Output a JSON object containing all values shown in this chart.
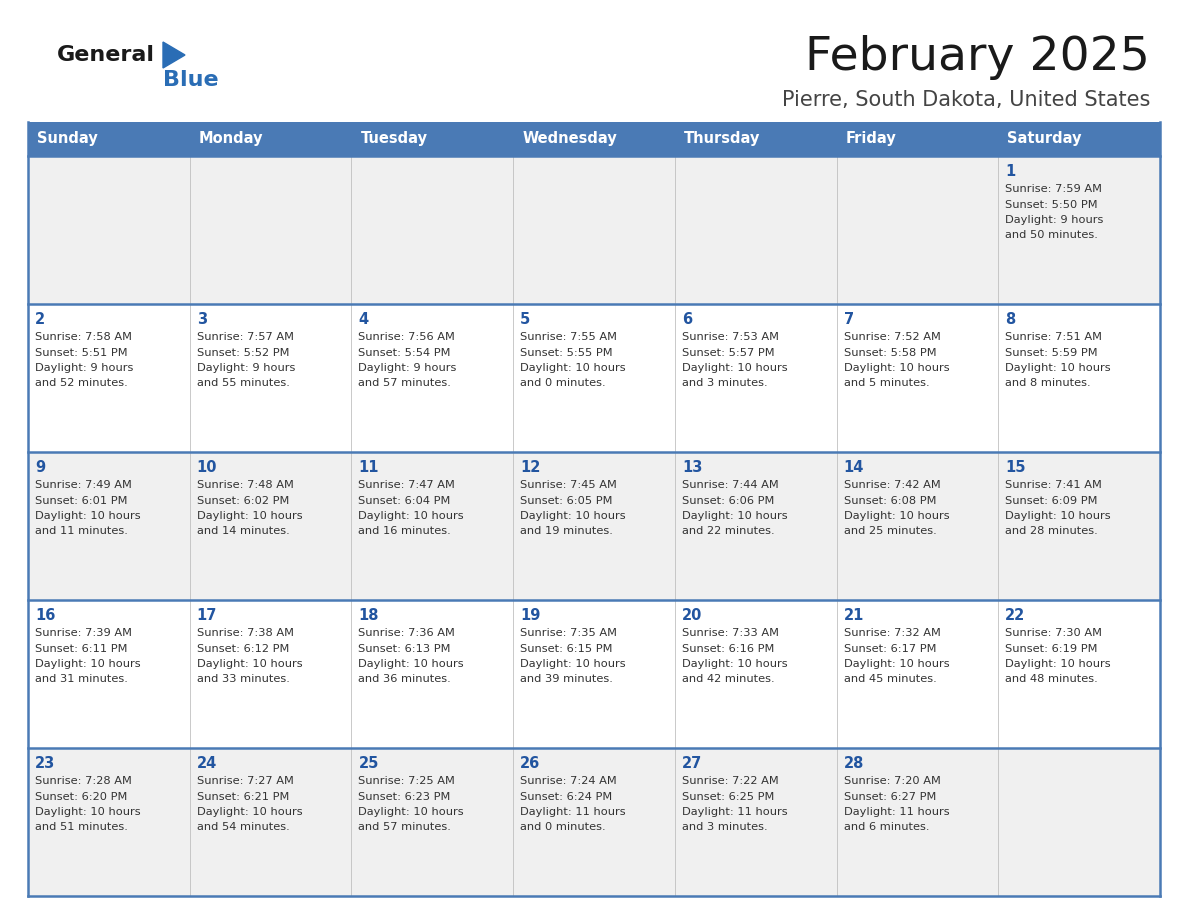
{
  "title": "February 2025",
  "subtitle": "Pierre, South Dakota, United States",
  "header_bg_color": "#4a7ab5",
  "header_text_color": "#ffffff",
  "cell_bg_light": "#f0f0f0",
  "cell_bg_white": "#ffffff",
  "day_number_color": "#2255a0",
  "cell_text_color": "#333333",
  "border_color": "#4a7ab5",
  "days_of_week": [
    "Sunday",
    "Monday",
    "Tuesday",
    "Wednesday",
    "Thursday",
    "Friday",
    "Saturday"
  ],
  "calendar": [
    [
      {
        "day": "",
        "info": ""
      },
      {
        "day": "",
        "info": ""
      },
      {
        "day": "",
        "info": ""
      },
      {
        "day": "",
        "info": ""
      },
      {
        "day": "",
        "info": ""
      },
      {
        "day": "",
        "info": ""
      },
      {
        "day": "1",
        "info": "Sunrise: 7:59 AM\nSunset: 5:50 PM\nDaylight: 9 hours\nand 50 minutes."
      }
    ],
    [
      {
        "day": "2",
        "info": "Sunrise: 7:58 AM\nSunset: 5:51 PM\nDaylight: 9 hours\nand 52 minutes."
      },
      {
        "day": "3",
        "info": "Sunrise: 7:57 AM\nSunset: 5:52 PM\nDaylight: 9 hours\nand 55 minutes."
      },
      {
        "day": "4",
        "info": "Sunrise: 7:56 AM\nSunset: 5:54 PM\nDaylight: 9 hours\nand 57 minutes."
      },
      {
        "day": "5",
        "info": "Sunrise: 7:55 AM\nSunset: 5:55 PM\nDaylight: 10 hours\nand 0 minutes."
      },
      {
        "day": "6",
        "info": "Sunrise: 7:53 AM\nSunset: 5:57 PM\nDaylight: 10 hours\nand 3 minutes."
      },
      {
        "day": "7",
        "info": "Sunrise: 7:52 AM\nSunset: 5:58 PM\nDaylight: 10 hours\nand 5 minutes."
      },
      {
        "day": "8",
        "info": "Sunrise: 7:51 AM\nSunset: 5:59 PM\nDaylight: 10 hours\nand 8 minutes."
      }
    ],
    [
      {
        "day": "9",
        "info": "Sunrise: 7:49 AM\nSunset: 6:01 PM\nDaylight: 10 hours\nand 11 minutes."
      },
      {
        "day": "10",
        "info": "Sunrise: 7:48 AM\nSunset: 6:02 PM\nDaylight: 10 hours\nand 14 minutes."
      },
      {
        "day": "11",
        "info": "Sunrise: 7:47 AM\nSunset: 6:04 PM\nDaylight: 10 hours\nand 16 minutes."
      },
      {
        "day": "12",
        "info": "Sunrise: 7:45 AM\nSunset: 6:05 PM\nDaylight: 10 hours\nand 19 minutes."
      },
      {
        "day": "13",
        "info": "Sunrise: 7:44 AM\nSunset: 6:06 PM\nDaylight: 10 hours\nand 22 minutes."
      },
      {
        "day": "14",
        "info": "Sunrise: 7:42 AM\nSunset: 6:08 PM\nDaylight: 10 hours\nand 25 minutes."
      },
      {
        "day": "15",
        "info": "Sunrise: 7:41 AM\nSunset: 6:09 PM\nDaylight: 10 hours\nand 28 minutes."
      }
    ],
    [
      {
        "day": "16",
        "info": "Sunrise: 7:39 AM\nSunset: 6:11 PM\nDaylight: 10 hours\nand 31 minutes."
      },
      {
        "day": "17",
        "info": "Sunrise: 7:38 AM\nSunset: 6:12 PM\nDaylight: 10 hours\nand 33 minutes."
      },
      {
        "day": "18",
        "info": "Sunrise: 7:36 AM\nSunset: 6:13 PM\nDaylight: 10 hours\nand 36 minutes."
      },
      {
        "day": "19",
        "info": "Sunrise: 7:35 AM\nSunset: 6:15 PM\nDaylight: 10 hours\nand 39 minutes."
      },
      {
        "day": "20",
        "info": "Sunrise: 7:33 AM\nSunset: 6:16 PM\nDaylight: 10 hours\nand 42 minutes."
      },
      {
        "day": "21",
        "info": "Sunrise: 7:32 AM\nSunset: 6:17 PM\nDaylight: 10 hours\nand 45 minutes."
      },
      {
        "day": "22",
        "info": "Sunrise: 7:30 AM\nSunset: 6:19 PM\nDaylight: 10 hours\nand 48 minutes."
      }
    ],
    [
      {
        "day": "23",
        "info": "Sunrise: 7:28 AM\nSunset: 6:20 PM\nDaylight: 10 hours\nand 51 minutes."
      },
      {
        "day": "24",
        "info": "Sunrise: 7:27 AM\nSunset: 6:21 PM\nDaylight: 10 hours\nand 54 minutes."
      },
      {
        "day": "25",
        "info": "Sunrise: 7:25 AM\nSunset: 6:23 PM\nDaylight: 10 hours\nand 57 minutes."
      },
      {
        "day": "26",
        "info": "Sunrise: 7:24 AM\nSunset: 6:24 PM\nDaylight: 11 hours\nand 0 minutes."
      },
      {
        "day": "27",
        "info": "Sunrise: 7:22 AM\nSunset: 6:25 PM\nDaylight: 11 hours\nand 3 minutes."
      },
      {
        "day": "28",
        "info": "Sunrise: 7:20 AM\nSunset: 6:27 PM\nDaylight: 11 hours\nand 6 minutes."
      },
      {
        "day": "",
        "info": ""
      }
    ]
  ]
}
